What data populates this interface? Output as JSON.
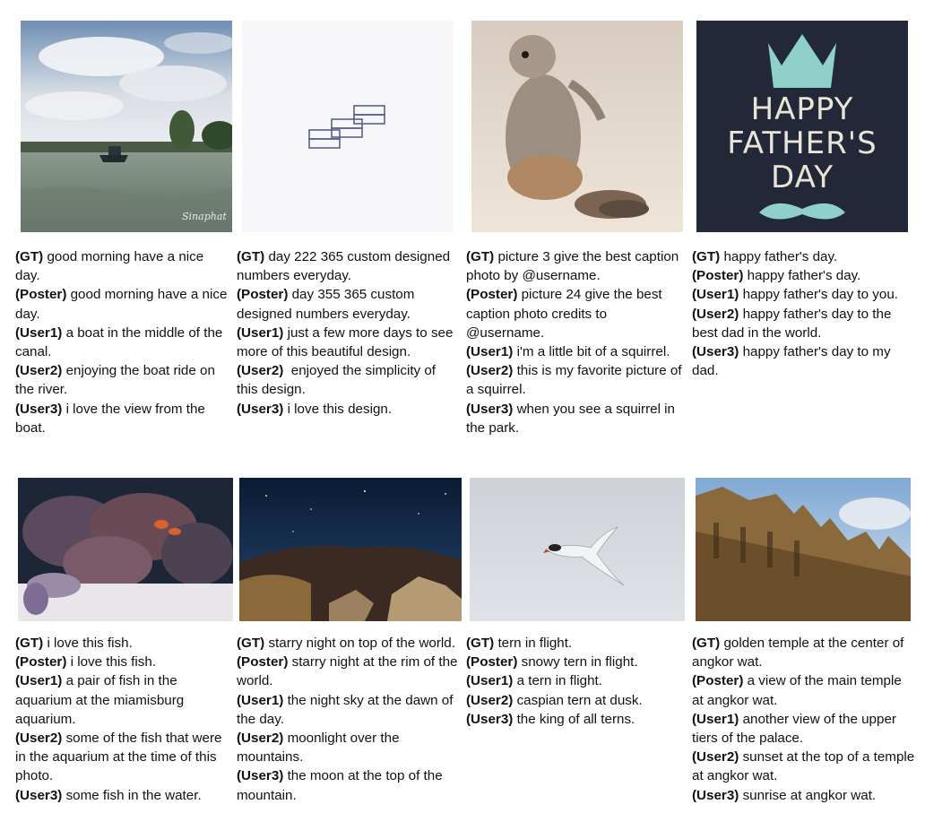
{
  "image_labels": {
    "img1": "Sinaphat"
  },
  "cells": [
    {
      "lines": [
        {
          "tag": "(GT)",
          "text": " good morning have a nice day."
        },
        {
          "tag": "(Poster)",
          "text": " good morning have a nice day."
        },
        {
          "tag": "(User1)",
          "text": " a boat in the middle of the canal."
        },
        {
          "tag": "(User2)",
          "text": " enjoying the boat ride on the river."
        },
        {
          "tag": "(User3)",
          "text": " i love the view from the boat."
        }
      ]
    },
    {
      "lines": [
        {
          "tag": "(GT)",
          "text": " day 222 365 custom designed numbers everyday."
        },
        {
          "tag": "(Poster)",
          "text": " day 355 365 custom designed numbers everyday."
        },
        {
          "tag": "(User1)",
          "text": " just a few more days to see more of this beautiful design."
        },
        {
          "tag": "(User2)",
          "text": "  enjoyed the simplicity of this design."
        },
        {
          "tag": "(User3)",
          "text": " i love this design."
        }
      ]
    },
    {
      "lines": [
        {
          "tag": "(GT)",
          "text": " picture 3 give the best caption photo by @username."
        },
        {
          "tag": "(Poster)",
          "text": " picture 24 give the best caption photo credits to @username."
        },
        {
          "tag": "(User1)",
          "text": " i'm a little bit of a squirrel."
        },
        {
          "tag": "(User2)",
          "text": " this is my favorite picture of a squirrel."
        },
        {
          "tag": "(User3)",
          "text": " when you see a squirrel in the park."
        }
      ]
    },
    {
      "lines": [
        {
          "tag": "(GT)",
          "text": " happy father's day."
        },
        {
          "tag": "(Poster)",
          "text": " happy father's day."
        },
        {
          "tag": "(User1)",
          "text": " happy father's day to you."
        },
        {
          "tag": "(User2)",
          "text": " happy father's day to the best dad in the world."
        },
        {
          "tag": "(User3)",
          "text": " happy father's day to my dad."
        }
      ],
      "poster_text": [
        "HAPPY",
        "FATHER'S",
        "DAY"
      ]
    },
    {
      "lines": [
        {
          "tag": "(GT)",
          "text": " i love this fish."
        },
        {
          "tag": "(Poster)",
          "text": " i love this fish."
        },
        {
          "tag": "(User1)",
          "text": " a pair of fish in the aquarium at the miamisburg aquarium."
        },
        {
          "tag": "(User2)",
          "text": " some of the fish that were in the aquarium at the time of this photo."
        },
        {
          "tag": "(User3)",
          "text": " some fish in the water."
        }
      ]
    },
    {
      "lines": [
        {
          "tag": "(GT)",
          "text": " starry night on top of the world."
        },
        {
          "tag": "(Poster)",
          "text": " starry night at the rim of the world."
        },
        {
          "tag": "(User1)",
          "text": " the night sky at the dawn of the day."
        },
        {
          "tag": "(User2)",
          "text": " moonlight over the mountains."
        },
        {
          "tag": "(User3)",
          "text": " the moon at the top of the mountain."
        }
      ]
    },
    {
      "lines": [
        {
          "tag": "(GT)",
          "text": " tern in flight."
        },
        {
          "tag": "(Poster)",
          "text": " snowy tern in flight."
        },
        {
          "tag": "(User1)",
          "text": " a tern in flight."
        },
        {
          "tag": "(User2)",
          "text": " caspian tern at dusk."
        },
        {
          "tag": "(User3)",
          "text": " the king of all terns."
        }
      ]
    },
    {
      "lines": [
        {
          "tag": "(GT)",
          "text": " golden temple at the center of angkor wat."
        },
        {
          "tag": "(Poster)",
          "text": " a view of the main temple at angkor wat."
        },
        {
          "tag": "(User1)",
          "text": " another view of the upper tiers of the palace."
        },
        {
          "tag": "(User2)",
          "text": " sunset at the top of a temple at angkor wat."
        },
        {
          "tag": "(User3)",
          "text": " sunrise at angkor wat."
        }
      ]
    }
  ]
}
